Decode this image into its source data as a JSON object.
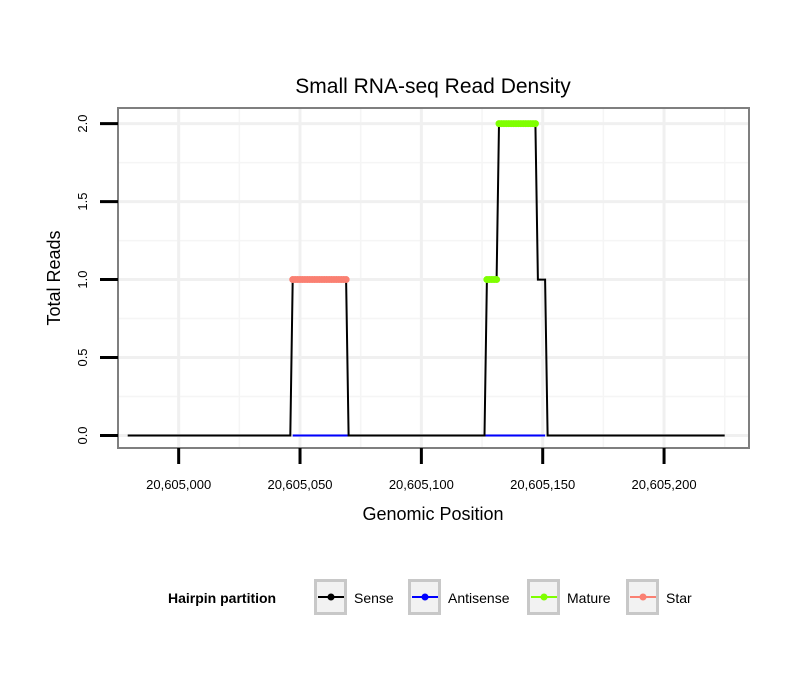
{
  "chart_data": {
    "type": "line",
    "title": "Small RNA-seq Read Density",
    "xlabel": "Genomic Position",
    "ylabel": "Total Reads",
    "xlim": [
      20604975,
      20605235
    ],
    "ylim": [
      -0.08,
      2.1
    ],
    "xticks": [
      20605000,
      20605050,
      20605100,
      20605150,
      20605200
    ],
    "xtick_labels": [
      "20,605,000",
      "20,605,050",
      "20,605,100",
      "20,605,150",
      "20,605,200"
    ],
    "yticks": [
      0,
      0.5,
      1,
      1.5,
      2
    ],
    "ytick_labels": [
      "0.0",
      "0.5",
      "1.0",
      "1.5",
      "2.0"
    ],
    "grid": true,
    "legend": {
      "title": "Hairpin partition",
      "placement": "bottom",
      "entries": [
        {
          "name": "Sense",
          "color": "#000000"
        },
        {
          "name": "Antisense",
          "color": "#0000ff"
        },
        {
          "name": "Mature",
          "color": "#7fff00"
        },
        {
          "name": "Star",
          "color": "#fa8072"
        }
      ]
    },
    "series": [
      {
        "name": "Sense",
        "color": "#000000",
        "kind": "line",
        "points": [
          [
            20604979,
            0
          ],
          [
            20605046,
            0
          ],
          [
            20605047,
            1
          ],
          [
            20605069,
            1
          ],
          [
            20605070,
            0
          ],
          [
            20605126,
            0
          ],
          [
            20605127,
            1
          ],
          [
            20605131,
            1
          ],
          [
            20605132,
            2
          ],
          [
            20605147,
            2
          ],
          [
            20605148,
            1
          ],
          [
            20605151,
            1
          ],
          [
            20605152,
            0
          ],
          [
            20605225,
            0
          ]
        ]
      },
      {
        "name": "Antisense",
        "color": "#0000ff",
        "kind": "line",
        "points": [
          [
            20605047,
            0
          ],
          [
            20605069,
            0
          ],
          [
            20605127,
            0
          ],
          [
            20605151,
            0
          ]
        ]
      },
      {
        "name": "Mature",
        "color": "#7fff00",
        "kind": "points",
        "points": [
          [
            20605127,
            1
          ],
          [
            20605128,
            1
          ],
          [
            20605129,
            1
          ],
          [
            20605130,
            1
          ],
          [
            20605131,
            1
          ],
          [
            20605132,
            2
          ],
          [
            20605133,
            2
          ],
          [
            20605134,
            2
          ],
          [
            20605135,
            2
          ],
          [
            20605136,
            2
          ],
          [
            20605137,
            2
          ],
          [
            20605138,
            2
          ],
          [
            20605139,
            2
          ],
          [
            20605140,
            2
          ],
          [
            20605141,
            2
          ],
          [
            20605142,
            2
          ],
          [
            20605143,
            2
          ],
          [
            20605144,
            2
          ],
          [
            20605145,
            2
          ],
          [
            20605146,
            2
          ],
          [
            20605147,
            2
          ]
        ]
      },
      {
        "name": "Star",
        "color": "#fa8072",
        "kind": "points",
        "points": [
          [
            20605047,
            1
          ],
          [
            20605048,
            1
          ],
          [
            20605049,
            1
          ],
          [
            20605050,
            1
          ],
          [
            20605051,
            1
          ],
          [
            20605052,
            1
          ],
          [
            20605053,
            1
          ],
          [
            20605054,
            1
          ],
          [
            20605055,
            1
          ],
          [
            20605056,
            1
          ],
          [
            20605057,
            1
          ],
          [
            20605058,
            1
          ],
          [
            20605059,
            1
          ],
          [
            20605060,
            1
          ],
          [
            20605061,
            1
          ],
          [
            20605062,
            1
          ],
          [
            20605063,
            1
          ],
          [
            20605064,
            1
          ],
          [
            20605065,
            1
          ],
          [
            20605066,
            1
          ],
          [
            20605067,
            1
          ],
          [
            20605068,
            1
          ],
          [
            20605069,
            1
          ]
        ]
      }
    ]
  }
}
